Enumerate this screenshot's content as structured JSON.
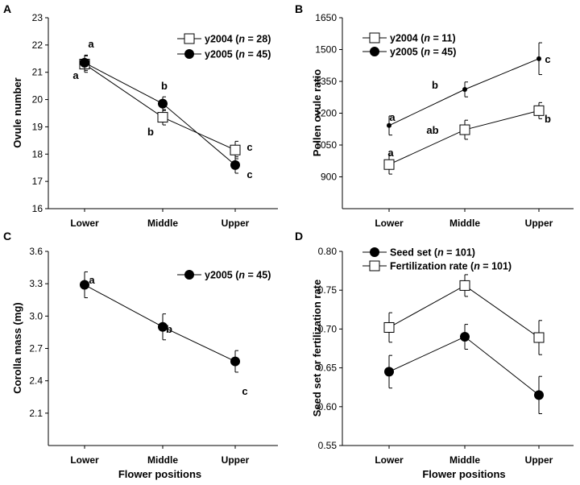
{
  "chart_data": [
    {
      "panel": "A",
      "type": "line",
      "categories": [
        "Lower",
        "Middle",
        "Upper"
      ],
      "xlabel": "",
      "ylabel": "Ovule number",
      "ylim": [
        16,
        23
      ],
      "yticks": [
        16,
        17,
        18,
        19,
        20,
        21,
        22,
        23
      ],
      "legend_position": "top-right",
      "series": [
        {
          "name": "y2004 (n = 28)",
          "marker": "open-square",
          "values": [
            21.3,
            19.35,
            18.15
          ],
          "err": [
            0.3,
            0.28,
            0.32
          ],
          "labels": [
            "a",
            "b",
            "c"
          ]
        },
        {
          "name": "y2005 (n = 45)",
          "marker": "filled-circle",
          "values": [
            21.35,
            19.85,
            17.6
          ],
          "err": [
            0.28,
            0.25,
            0.3
          ],
          "labels": [
            "a",
            "b",
            "c"
          ]
        }
      ]
    },
    {
      "panel": "B",
      "type": "line",
      "categories": [
        "Lower",
        "Middle",
        "Upper"
      ],
      "xlabel": "",
      "ylabel": "Pollen ovule ratio",
      "ylim": [
        750,
        1650
      ],
      "yticks": [
        900,
        1050,
        1200,
        1350,
        1500,
        1650
      ],
      "legend_position": "top-left",
      "series": [
        {
          "name": "y2004 (n = 11)",
          "marker": "open-square",
          "values": [
            958,
            1122,
            1212
          ],
          "err": [
            45,
            45,
            38
          ],
          "labels": [
            "a",
            "ab",
            "b"
          ]
        },
        {
          "name": "y2005 (n = 45)",
          "marker": "small-filled-circle",
          "values": [
            1142,
            1312,
            1457
          ],
          "err": [
            45,
            35,
            75
          ],
          "labels": [
            "a",
            "b",
            "c"
          ]
        }
      ]
    },
    {
      "panel": "C",
      "type": "line",
      "categories": [
        "Lower",
        "Middle",
        "Upper"
      ],
      "xlabel": "Flower positions",
      "ylabel": "Corolla mass (mg)",
      "ylim": [
        1.8,
        3.6
      ],
      "yticks": [
        2.1,
        2.4,
        2.7,
        3.0,
        3.3,
        3.6
      ],
      "legend_position": "top-right",
      "series": [
        {
          "name": "y2005 (n = 45)",
          "marker": "filled-circle",
          "values": [
            3.29,
            2.9,
            2.58
          ],
          "err": [
            0.12,
            0.12,
            0.1
          ],
          "labels": [
            "a",
            "b",
            "c"
          ]
        }
      ]
    },
    {
      "panel": "D",
      "type": "line",
      "categories": [
        "Lower",
        "Middle",
        "Upper"
      ],
      "xlabel": "Flower positions",
      "ylabel": "Seed set or fertilization rate",
      "ylim": [
        0.55,
        0.8
      ],
      "yticks": [
        0.55,
        0.6,
        0.65,
        0.7,
        0.75,
        0.8
      ],
      "legend_position": "top-left",
      "series": [
        {
          "name": "Seed set (n = 101)",
          "marker": "filled-circle",
          "values": [
            0.645,
            0.69,
            0.615
          ],
          "err": [
            0.021,
            0.016,
            0.024
          ],
          "labels": []
        },
        {
          "name": "Fertilization rate (n = 101)",
          "marker": "open-square",
          "values": [
            0.702,
            0.756,
            0.689
          ],
          "err": [
            0.019,
            0.014,
            0.022
          ],
          "labels": []
        }
      ]
    }
  ]
}
